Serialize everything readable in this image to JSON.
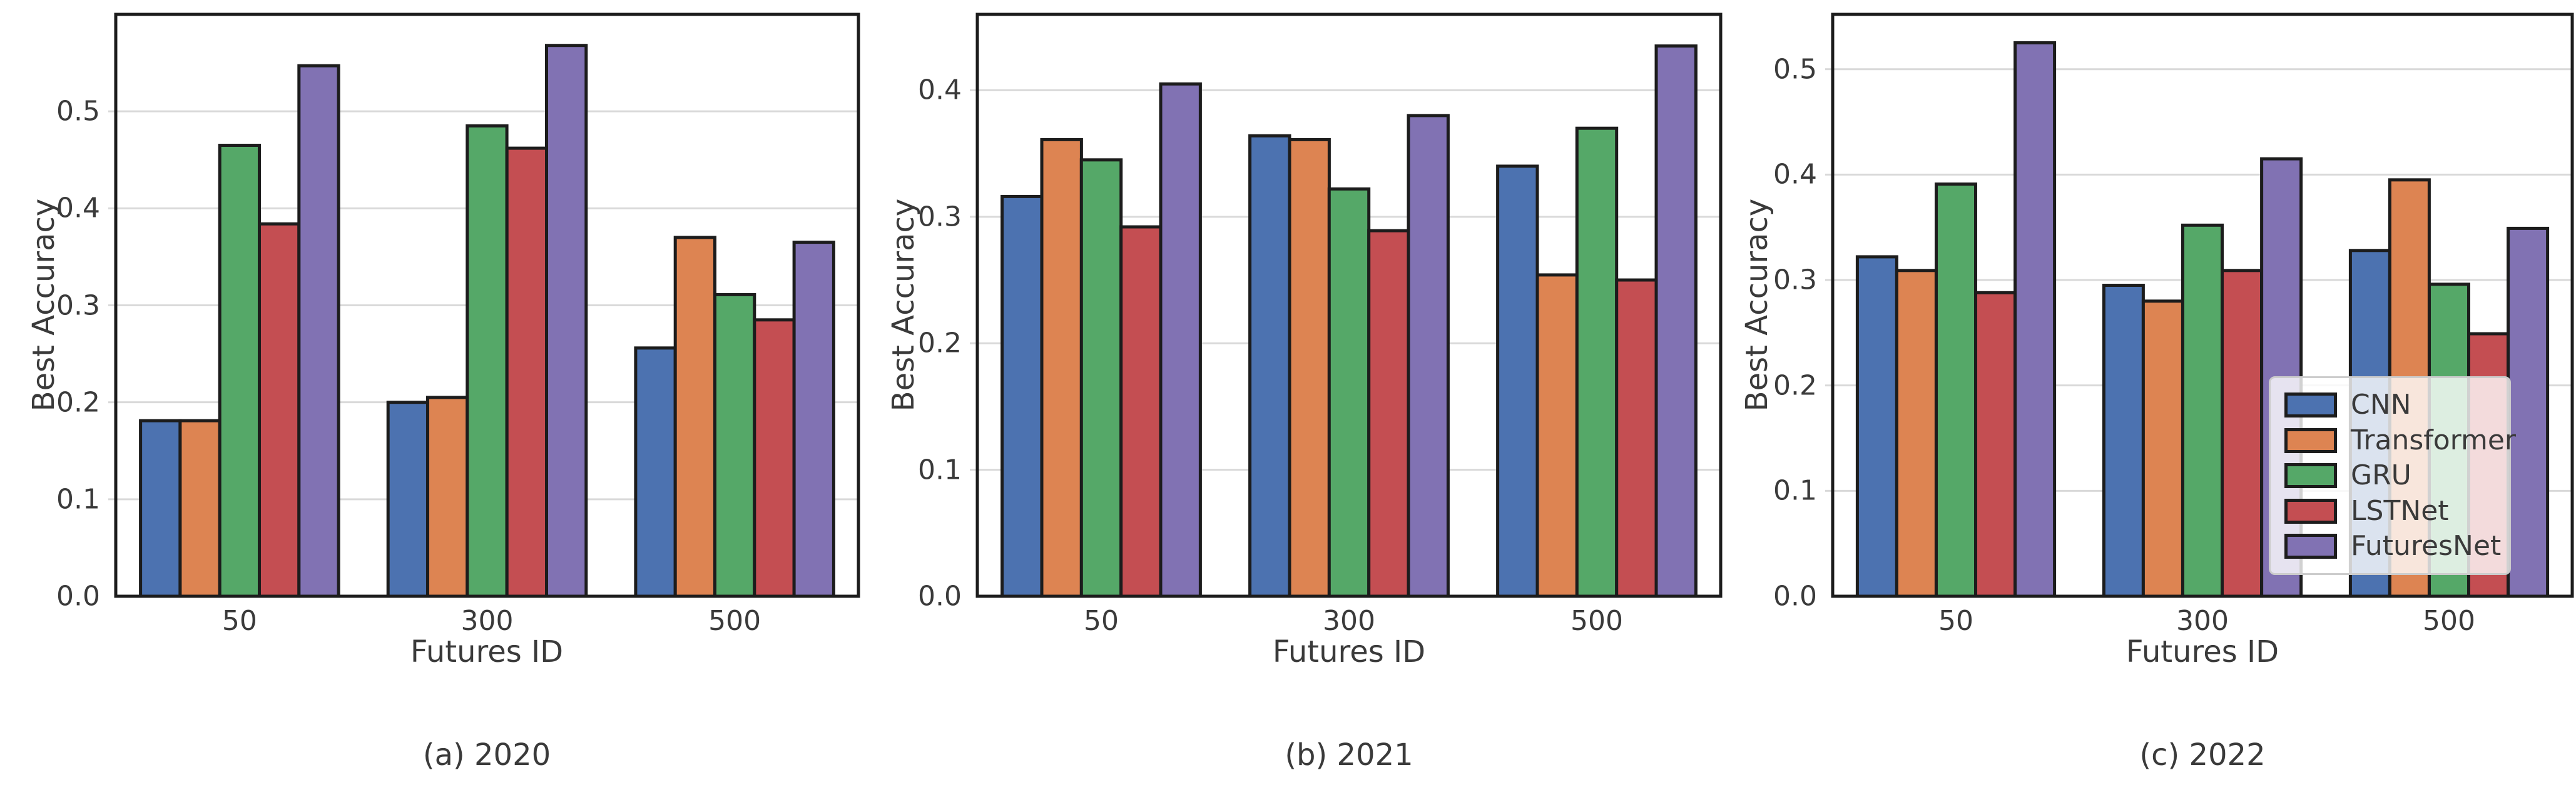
{
  "figure": {
    "background": "#ffffff",
    "text_color": "#3a3a3a",
    "grid_color": "#d9d9d9",
    "spine_color": "#1c1c1c",
    "bar_edge_color": "#1c1c1c"
  },
  "legend": {
    "entries": [
      "CNN",
      "Transformer",
      "GRU",
      "LSTNet",
      "FuturesNet"
    ],
    "colors": [
      "#4C72B0",
      "#DD8452",
      "#55A868",
      "#C44E52",
      "#8172B3"
    ],
    "position": "lower right of third panel"
  },
  "chart_data": [
    {
      "id": "a",
      "type": "bar",
      "title": "(a) 2020",
      "xlabel": "Futures ID",
      "ylabel": "Best Accuracy",
      "categories": [
        "50",
        "300",
        "500"
      ],
      "yticks": [
        0.0,
        0.1,
        0.2,
        0.3,
        0.4,
        0.5
      ],
      "ylim": [
        0,
        0.6
      ],
      "grid": "horizontal",
      "legend_visible": false,
      "series": [
        {
          "name": "CNN",
          "color": "#4C72B0",
          "values": [
            0.181,
            0.2,
            0.256
          ]
        },
        {
          "name": "Transformer",
          "color": "#DD8452",
          "values": [
            0.181,
            0.205,
            0.37
          ]
        },
        {
          "name": "GRU",
          "color": "#55A868",
          "values": [
            0.465,
            0.485,
            0.311
          ]
        },
        {
          "name": "LSTNet",
          "color": "#C44E52",
          "values": [
            0.384,
            0.462,
            0.285
          ]
        },
        {
          "name": "FuturesNet",
          "color": "#8172B3",
          "values": [
            0.547,
            0.568,
            0.365
          ]
        }
      ]
    },
    {
      "id": "b",
      "type": "bar",
      "title": "(b) 2021",
      "xlabel": "Futures ID",
      "ylabel": "Best Accuracy",
      "categories": [
        "50",
        "300",
        "500"
      ],
      "yticks": [
        0.0,
        0.1,
        0.2,
        0.3,
        0.4
      ],
      "ylim": [
        0,
        0.46
      ],
      "grid": "horizontal",
      "legend_visible": false,
      "series": [
        {
          "name": "CNN",
          "color": "#4C72B0",
          "values": [
            0.316,
            0.364,
            0.34
          ]
        },
        {
          "name": "Transformer",
          "color": "#DD8452",
          "values": [
            0.361,
            0.361,
            0.254
          ]
        },
        {
          "name": "GRU",
          "color": "#55A868",
          "values": [
            0.345,
            0.322,
            0.37
          ]
        },
        {
          "name": "LSTNet",
          "color": "#C44E52",
          "values": [
            0.292,
            0.289,
            0.25
          ]
        },
        {
          "name": "FuturesNet",
          "color": "#8172B3",
          "values": [
            0.405,
            0.38,
            0.435
          ]
        }
      ]
    },
    {
      "id": "c",
      "type": "bar",
      "title": "(c) 2022",
      "xlabel": "Futures ID",
      "ylabel": "Best Accuracy",
      "categories": [
        "50",
        "300",
        "500"
      ],
      "yticks": [
        0.0,
        0.1,
        0.2,
        0.3,
        0.4,
        0.5
      ],
      "ylim": [
        0,
        0.552
      ],
      "grid": "horizontal",
      "legend_visible": true,
      "series": [
        {
          "name": "CNN",
          "color": "#4C72B0",
          "values": [
            0.322,
            0.295,
            0.328
          ]
        },
        {
          "name": "Transformer",
          "color": "#DD8452",
          "values": [
            0.309,
            0.28,
            0.395
          ]
        },
        {
          "name": "GRU",
          "color": "#55A868",
          "values": [
            0.391,
            0.352,
            0.296
          ]
        },
        {
          "name": "LSTNet",
          "color": "#C44E52",
          "values": [
            0.288,
            0.309,
            0.249
          ]
        },
        {
          "name": "FuturesNet",
          "color": "#8172B3",
          "values": [
            0.525,
            0.415,
            0.349
          ]
        }
      ]
    }
  ]
}
